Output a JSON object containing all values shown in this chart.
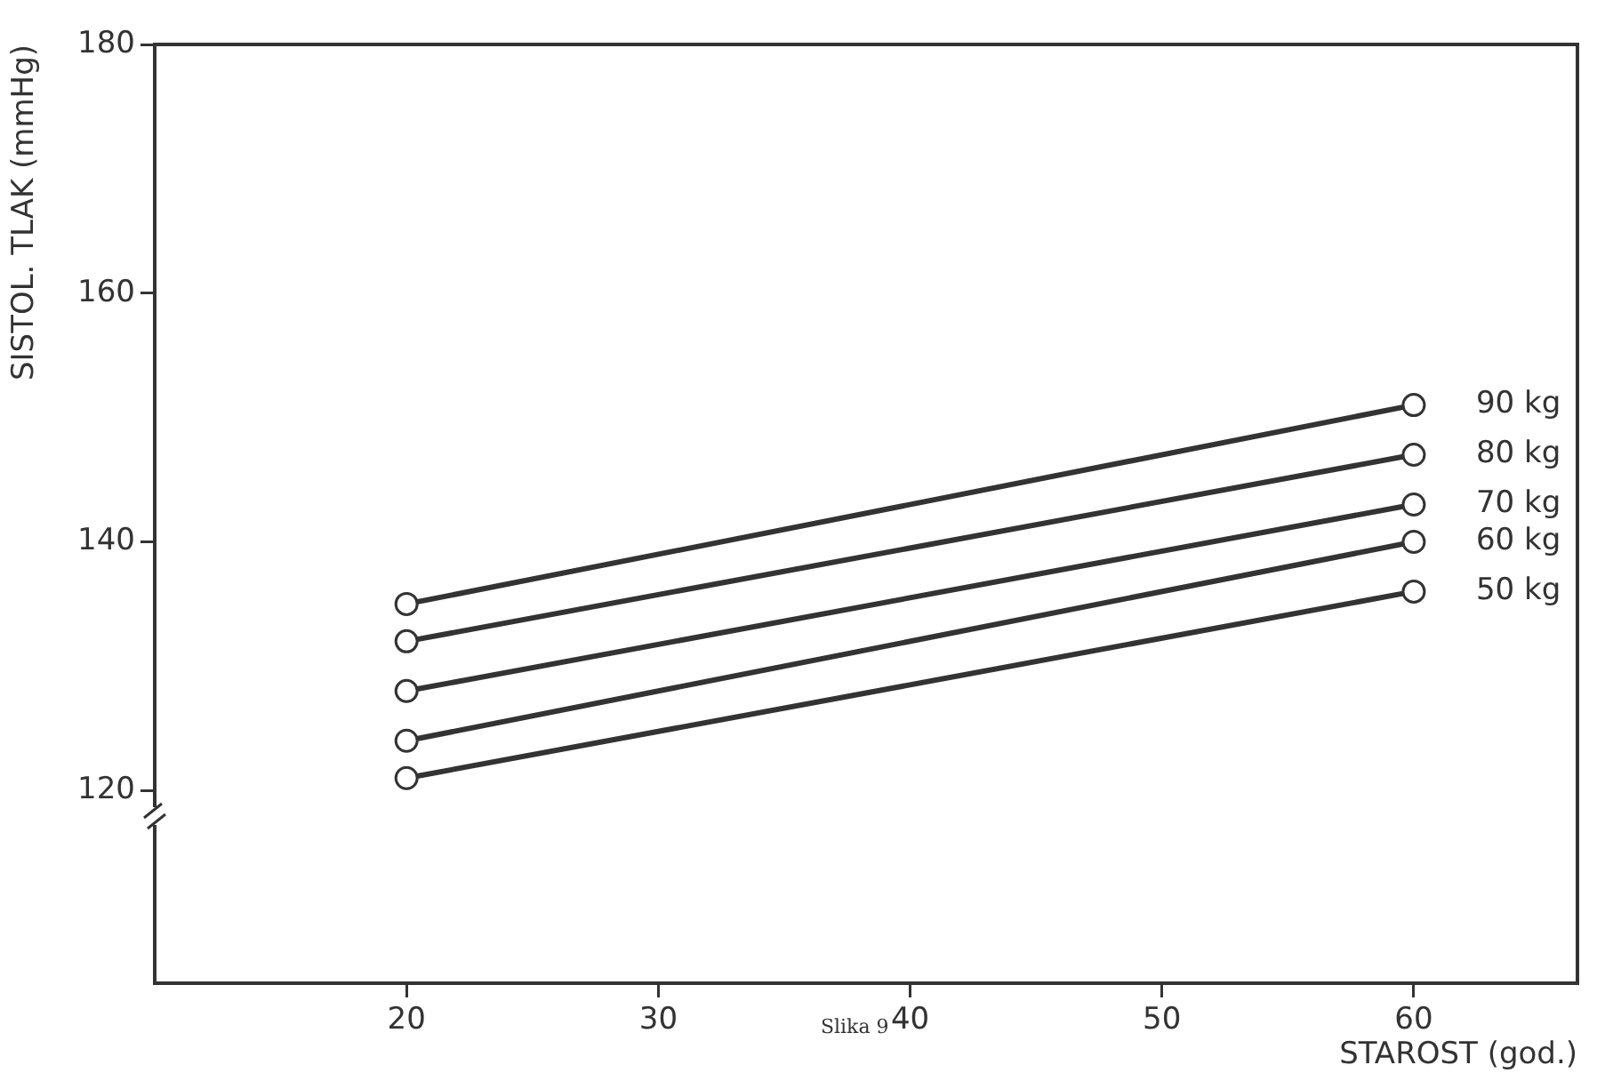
{
  "chart_data": {
    "type": "line",
    "xlabel": "STAROST (god.)",
    "ylabel": "SISTOL. TLAK (mmHg)",
    "annotations": [
      "Slika 9"
    ],
    "x": [
      20,
      60
    ],
    "series": [
      {
        "name": "90 kg",
        "color": "#333333",
        "values": [
          135,
          151
        ]
      },
      {
        "name": "80 kg",
        "color": "#333333",
        "values": [
          132,
          147
        ]
      },
      {
        "name": "70 kg",
        "color": "#333333",
        "values": [
          128,
          143
        ]
      },
      {
        "name": "60 kg",
        "color": "#333333",
        "values": [
          124,
          140
        ]
      },
      {
        "name": "50 kg",
        "color": "#333333",
        "values": [
          121,
          136
        ]
      }
    ],
    "xlim": [
      10,
      66.5
    ],
    "xticks": [
      20,
      30,
      40,
      50,
      60
    ],
    "ylim": [
      104.5,
      180
    ],
    "yticks": [
      120,
      140,
      160,
      180
    ],
    "grid": false,
    "legend": false,
    "marker": "circle",
    "line_style": "solid"
  }
}
